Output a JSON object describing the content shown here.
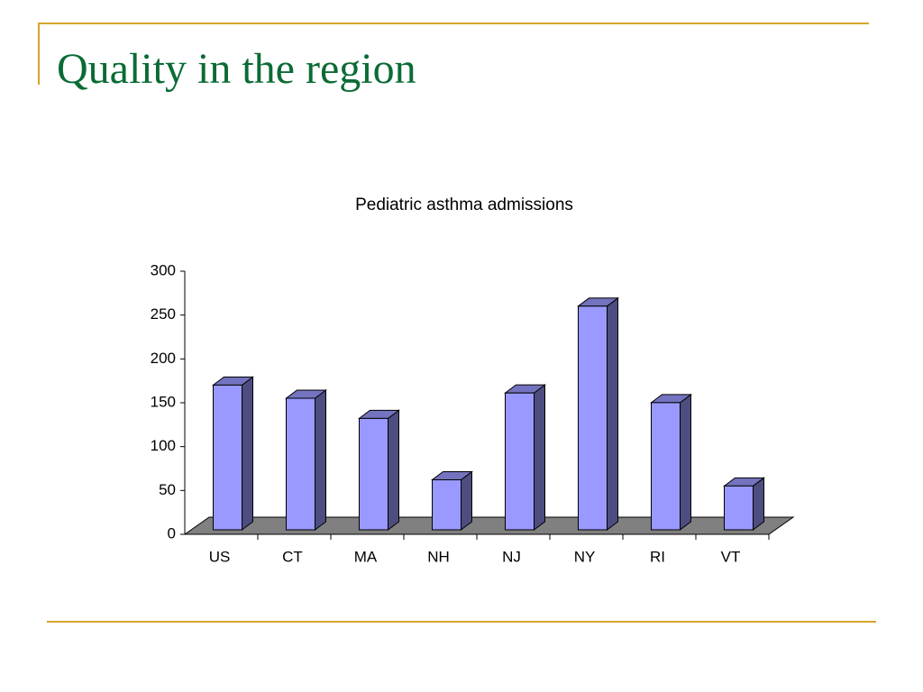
{
  "slide": {
    "title": "Quality in the region"
  },
  "chart_data": {
    "type": "bar",
    "title": "Pediatric asthma admissions",
    "categories": [
      "US",
      "CT",
      "MA",
      "NH",
      "NJ",
      "NY",
      "RI",
      "VT"
    ],
    "values": [
      165,
      150,
      127,
      57,
      156,
      255,
      145,
      50
    ],
    "color": "#9999ff",
    "ylim": [
      0,
      300
    ],
    "yticks": [
      0,
      50,
      100,
      150,
      200,
      250,
      300
    ]
  }
}
